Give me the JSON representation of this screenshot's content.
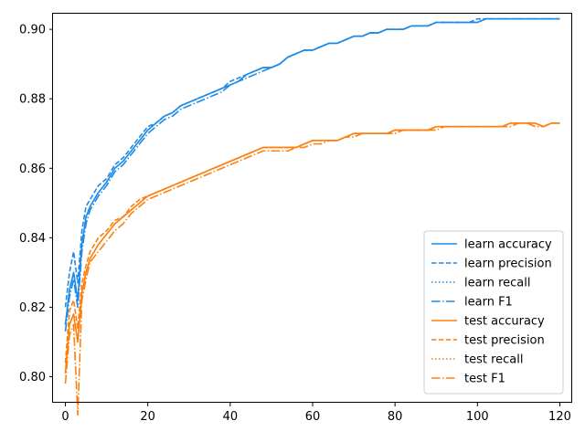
{
  "chart_data": {
    "type": "line",
    "title": "",
    "xlabel": "",
    "ylabel": "",
    "xlim": [
      -3,
      123
    ],
    "ylim": [
      0.7925,
      0.9045
    ],
    "xticks": [
      0,
      20,
      40,
      60,
      80,
      100,
      120
    ],
    "yticks": [
      0.8,
      0.82,
      0.84,
      0.86,
      0.88,
      0.9
    ],
    "xtick_labels": [
      "0",
      "20",
      "40",
      "60",
      "80",
      "100",
      "120"
    ],
    "ytick_labels": [
      "0.80",
      "0.82",
      "0.84",
      "0.86",
      "0.88",
      "0.90"
    ],
    "grid": false,
    "legend_position": "lower-right",
    "colors": {
      "learn": "#1f8ae6",
      "test": "#ff7f0e"
    },
    "x": [
      0,
      1,
      2,
      3,
      4,
      5,
      6,
      8,
      10,
      12,
      14,
      16,
      18,
      20,
      22,
      24,
      26,
      28,
      30,
      32,
      34,
      36,
      38,
      40,
      42,
      44,
      46,
      48,
      50,
      52,
      54,
      56,
      58,
      60,
      62,
      64,
      66,
      68,
      70,
      72,
      74,
      76,
      78,
      80,
      82,
      84,
      86,
      88,
      90,
      92,
      94,
      96,
      98,
      100,
      102,
      104,
      106,
      108,
      110,
      112,
      114,
      116,
      118,
      120
    ],
    "series": [
      {
        "name": "learn accuracy",
        "group": "learn",
        "dash": "solid",
        "values": [
          0.815,
          0.825,
          0.83,
          0.822,
          0.838,
          0.846,
          0.849,
          0.853,
          0.856,
          0.86,
          0.862,
          0.865,
          0.868,
          0.871,
          0.873,
          0.875,
          0.876,
          0.878,
          0.879,
          0.88,
          0.881,
          0.882,
          0.883,
          0.884,
          0.885,
          0.887,
          0.888,
          0.889,
          0.889,
          0.89,
          0.892,
          0.893,
          0.894,
          0.894,
          0.895,
          0.896,
          0.896,
          0.897,
          0.898,
          0.898,
          0.899,
          0.899,
          0.9,
          0.9,
          0.9,
          0.901,
          0.901,
          0.901,
          0.902,
          0.902,
          0.902,
          0.902,
          0.902,
          0.902,
          0.903,
          0.903,
          0.903,
          0.903,
          0.903,
          0.903,
          0.903,
          0.903,
          0.903,
          0.903
        ]
      },
      {
        "name": "learn precision",
        "group": "learn",
        "dash": "dashed",
        "values": [
          0.82,
          0.83,
          0.836,
          0.827,
          0.842,
          0.849,
          0.851,
          0.855,
          0.857,
          0.861,
          0.863,
          0.866,
          0.869,
          0.872,
          0.873,
          0.875,
          0.876,
          0.878,
          0.879,
          0.88,
          0.881,
          0.882,
          0.883,
          0.885,
          0.886,
          0.887,
          0.888,
          0.889,
          0.889,
          0.89,
          0.892,
          0.893,
          0.894,
          0.894,
          0.895,
          0.896,
          0.896,
          0.897,
          0.898,
          0.898,
          0.899,
          0.899,
          0.9,
          0.9,
          0.9,
          0.901,
          0.901,
          0.901,
          0.902,
          0.902,
          0.902,
          0.902,
          0.902,
          0.903,
          0.903,
          0.903,
          0.903,
          0.903,
          0.903,
          0.903,
          0.903,
          0.903,
          0.903,
          0.903
        ]
      },
      {
        "name": "learn recall",
        "group": "learn",
        "dash": "dotted",
        "values": [
          0.815,
          0.825,
          0.83,
          0.822,
          0.838,
          0.846,
          0.849,
          0.853,
          0.856,
          0.86,
          0.862,
          0.865,
          0.868,
          0.871,
          0.873,
          0.875,
          0.876,
          0.878,
          0.879,
          0.88,
          0.881,
          0.882,
          0.883,
          0.884,
          0.885,
          0.887,
          0.888,
          0.889,
          0.889,
          0.89,
          0.892,
          0.893,
          0.894,
          0.894,
          0.895,
          0.896,
          0.896,
          0.897,
          0.898,
          0.898,
          0.899,
          0.899,
          0.9,
          0.9,
          0.9,
          0.901,
          0.901,
          0.901,
          0.902,
          0.902,
          0.902,
          0.902,
          0.902,
          0.902,
          0.903,
          0.903,
          0.903,
          0.903,
          0.903,
          0.903,
          0.903,
          0.903,
          0.903,
          0.903
        ]
      },
      {
        "name": "learn F1",
        "group": "learn",
        "dash": "dashdot",
        "values": [
          0.813,
          0.823,
          0.828,
          0.82,
          0.836,
          0.844,
          0.848,
          0.852,
          0.855,
          0.859,
          0.861,
          0.864,
          0.867,
          0.87,
          0.872,
          0.874,
          0.875,
          0.877,
          0.878,
          0.879,
          0.88,
          0.881,
          0.882,
          0.884,
          0.885,
          0.886,
          0.887,
          0.888,
          0.889,
          0.89,
          0.892,
          0.893,
          0.894,
          0.894,
          0.895,
          0.896,
          0.896,
          0.897,
          0.898,
          0.898,
          0.899,
          0.899,
          0.9,
          0.9,
          0.9,
          0.901,
          0.901,
          0.901,
          0.902,
          0.902,
          0.902,
          0.902,
          0.902,
          0.902,
          0.903,
          0.903,
          0.903,
          0.903,
          0.903,
          0.903,
          0.903,
          0.903,
          0.903,
          0.903
        ]
      },
      {
        "name": "test accuracy",
        "group": "test",
        "dash": "solid",
        "values": [
          0.801,
          0.815,
          0.818,
          0.81,
          0.824,
          0.83,
          0.834,
          0.838,
          0.841,
          0.844,
          0.846,
          0.848,
          0.85,
          0.852,
          0.853,
          0.854,
          0.855,
          0.856,
          0.857,
          0.858,
          0.859,
          0.86,
          0.861,
          0.862,
          0.863,
          0.864,
          0.865,
          0.866,
          0.866,
          0.866,
          0.866,
          0.866,
          0.867,
          0.868,
          0.868,
          0.868,
          0.868,
          0.869,
          0.87,
          0.87,
          0.87,
          0.87,
          0.87,
          0.871,
          0.871,
          0.871,
          0.871,
          0.871,
          0.872,
          0.872,
          0.872,
          0.872,
          0.872,
          0.872,
          0.872,
          0.872,
          0.872,
          0.873,
          0.873,
          0.873,
          0.873,
          0.872,
          0.873,
          0.873
        ]
      },
      {
        "name": "test precision",
        "group": "test",
        "dash": "dashed",
        "values": [
          0.804,
          0.819,
          0.822,
          0.814,
          0.827,
          0.832,
          0.836,
          0.84,
          0.842,
          0.845,
          0.846,
          0.849,
          0.851,
          0.852,
          0.853,
          0.854,
          0.855,
          0.856,
          0.857,
          0.858,
          0.859,
          0.86,
          0.861,
          0.862,
          0.863,
          0.864,
          0.865,
          0.866,
          0.866,
          0.866,
          0.866,
          0.866,
          0.867,
          0.868,
          0.868,
          0.868,
          0.868,
          0.869,
          0.87,
          0.87,
          0.87,
          0.87,
          0.87,
          0.871,
          0.871,
          0.871,
          0.871,
          0.871,
          0.872,
          0.872,
          0.872,
          0.872,
          0.872,
          0.872,
          0.872,
          0.872,
          0.872,
          0.873,
          0.873,
          0.873,
          0.873,
          0.872,
          0.873,
          0.873
        ]
      },
      {
        "name": "test recall",
        "group": "test",
        "dash": "dotted",
        "values": [
          0.801,
          0.815,
          0.818,
          0.81,
          0.824,
          0.83,
          0.834,
          0.838,
          0.841,
          0.844,
          0.846,
          0.848,
          0.85,
          0.852,
          0.853,
          0.854,
          0.855,
          0.856,
          0.857,
          0.858,
          0.859,
          0.86,
          0.861,
          0.862,
          0.863,
          0.864,
          0.865,
          0.866,
          0.866,
          0.866,
          0.866,
          0.866,
          0.867,
          0.868,
          0.868,
          0.868,
          0.868,
          0.869,
          0.87,
          0.87,
          0.87,
          0.87,
          0.87,
          0.871,
          0.871,
          0.871,
          0.871,
          0.871,
          0.872,
          0.872,
          0.872,
          0.872,
          0.872,
          0.872,
          0.872,
          0.872,
          0.872,
          0.873,
          0.873,
          0.873,
          0.873,
          0.872,
          0.873,
          0.873
        ]
      },
      {
        "name": "test F1",
        "group": "test",
        "dash": "dashdot",
        "values": [
          0.798,
          0.812,
          0.815,
          0.789,
          0.822,
          0.828,
          0.833,
          0.836,
          0.839,
          0.842,
          0.844,
          0.847,
          0.849,
          0.851,
          0.852,
          0.853,
          0.854,
          0.855,
          0.856,
          0.857,
          0.858,
          0.859,
          0.86,
          0.861,
          0.862,
          0.863,
          0.864,
          0.865,
          0.865,
          0.865,
          0.865,
          0.866,
          0.866,
          0.867,
          0.867,
          0.868,
          0.868,
          0.869,
          0.869,
          0.87,
          0.87,
          0.87,
          0.87,
          0.87,
          0.871,
          0.871,
          0.871,
          0.871,
          0.871,
          0.872,
          0.872,
          0.872,
          0.872,
          0.872,
          0.872,
          0.872,
          0.872,
          0.872,
          0.873,
          0.873,
          0.872,
          0.872,
          0.873,
          0.873
        ]
      }
    ]
  }
}
